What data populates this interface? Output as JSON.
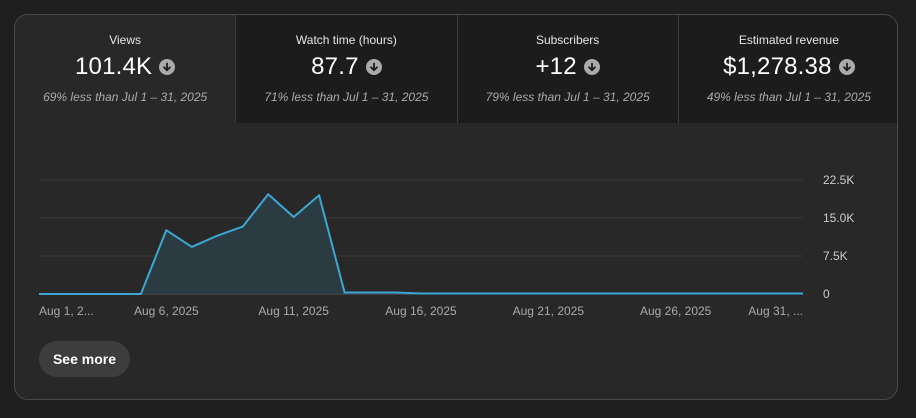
{
  "metrics": [
    {
      "title": "Views",
      "value": "101.4K",
      "trend_icon": "arrow-down-circle-icon",
      "compare": "69% less than Jul 1 – 31, 2025"
    },
    {
      "title": "Watch time (hours)",
      "value": "87.7",
      "trend_icon": "arrow-down-circle-icon",
      "compare": "71% less than Jul 1 – 31, 2025"
    },
    {
      "title": "Subscribers",
      "value": "+12",
      "trend_icon": "arrow-down-circle-icon",
      "compare": "79% less than Jul 1 – 31, 2025"
    },
    {
      "title": "Estimated revenue",
      "value": "$1,278.38",
      "trend_icon": "arrow-down-circle-icon",
      "compare": "49% less than Jul 1 – 31, 2025"
    }
  ],
  "see_more_label": "See more",
  "colors": {
    "line": "#3ea6d2",
    "area": "#2b3d45",
    "grid": "#3a3a3a"
  },
  "chart_data": {
    "type": "area",
    "x_labels": [
      "Aug 1, 2...",
      "Aug 6, 2025",
      "Aug 11, 2025",
      "Aug 16, 2025",
      "Aug 21, 2025",
      "Aug 26, 2025",
      "Aug 31, ..."
    ],
    "x_label_days": [
      1,
      6,
      11,
      16,
      21,
      26,
      31
    ],
    "y_ticks": [
      "0",
      "7.5K",
      "15.0K",
      "22.5K"
    ],
    "ylim": [
      0,
      22500
    ],
    "grid": true,
    "series": [
      {
        "x": [
          1,
          2,
          3,
          4,
          5,
          6,
          7,
          8,
          9,
          10,
          11,
          12,
          13,
          14,
          15,
          16,
          17,
          18,
          19,
          20,
          21,
          22,
          23,
          24,
          25,
          26,
          27,
          28,
          29,
          30,
          31
        ],
        "values": [
          0,
          0,
          0,
          0,
          0,
          12600,
          9300,
          11500,
          13300,
          19700,
          15200,
          19500,
          300,
          300,
          300,
          100,
          100,
          100,
          100,
          100,
          100,
          100,
          100,
          100,
          100,
          100,
          100,
          100,
          100,
          100,
          100
        ]
      }
    ]
  }
}
